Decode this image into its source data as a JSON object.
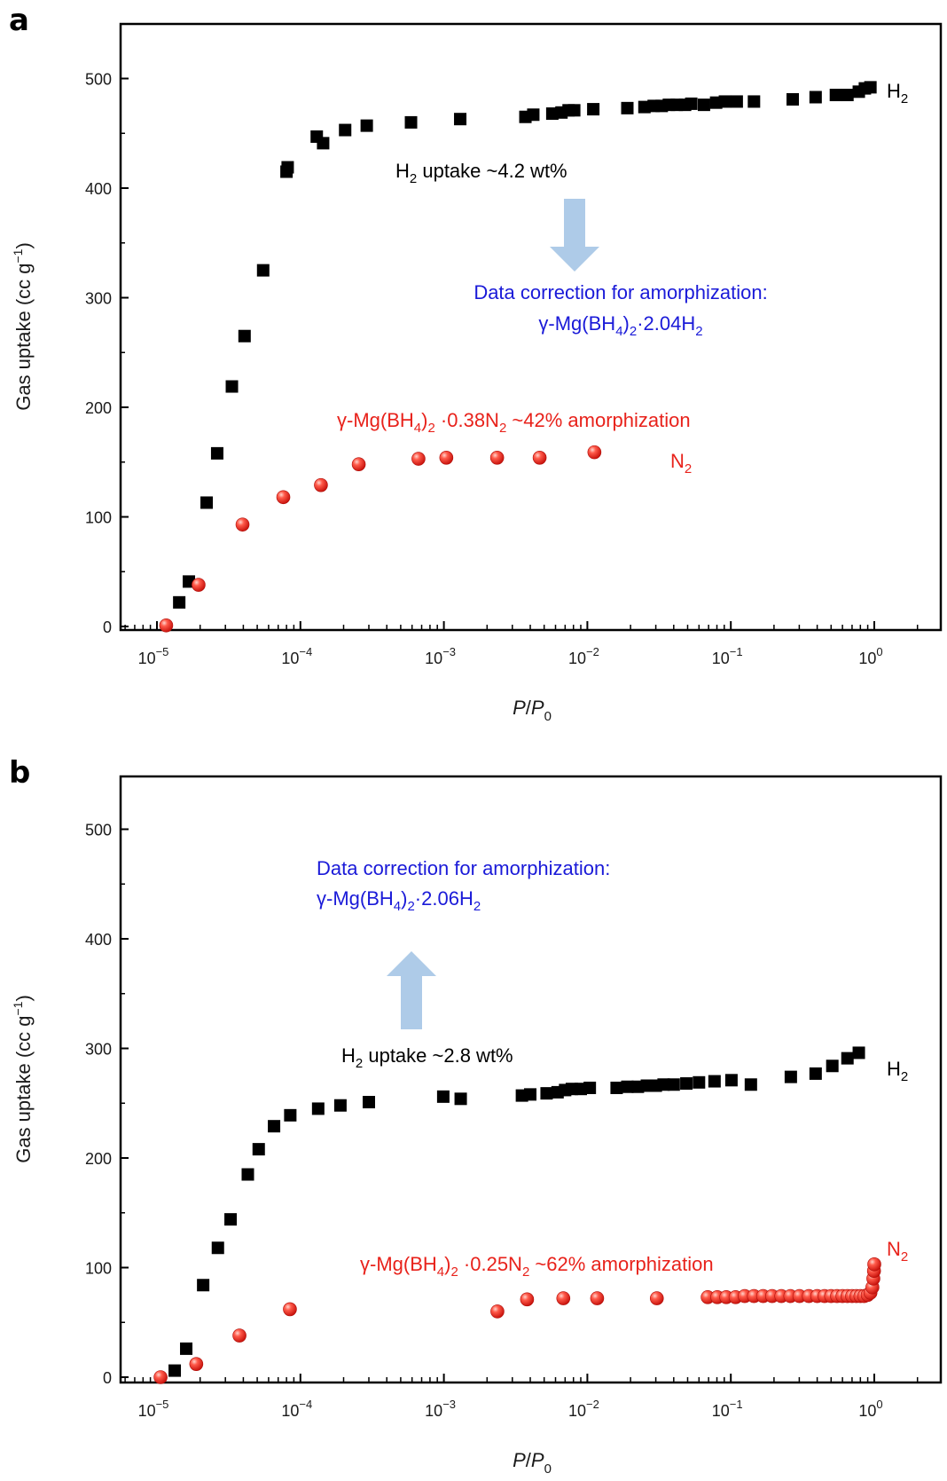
{
  "colors": {
    "h2": "#000000",
    "n2": "#e8221b",
    "note": "#1a1ad8",
    "arrow": "#aecbe8",
    "axis": "#000000"
  },
  "chart_data": [
    {
      "type": "scatter",
      "panel": "a",
      "xscale": "log",
      "xlim": [
        4e-06,
        3
      ],
      "ylim": [
        0,
        550
      ],
      "xlabel": "P/P0",
      "ylabel": "Gas uptake (cc g−1)",
      "yticks": [
        0,
        100,
        200,
        300,
        400,
        500
      ],
      "xticks": [
        {
          "base": "10",
          "exp": "−5"
        },
        {
          "base": "10",
          "exp": "−4"
        },
        {
          "base": "10",
          "exp": "−3"
        },
        {
          "base": "10",
          "exp": "−2"
        },
        {
          "base": "10",
          "exp": "−1"
        },
        {
          "base": "10",
          "exp": "0"
        }
      ],
      "series": [
        {
          "name": "H2",
          "marker": "square",
          "label": {
            "base": "H",
            "sub": "2"
          },
          "x": [
            1.43e-05,
            1.67e-05,
            2.22e-05,
            2.63e-05,
            3.33e-05,
            4.08e-05,
            5.5e-05,
            8e-05,
            8.15e-05,
            0.00013,
            0.000144,
            0.000205,
            0.00029,
            0.00059,
            0.0013,
            0.0037,
            0.0042,
            0.0057,
            0.0066,
            0.0074,
            0.0081,
            0.011,
            0.019,
            0.025,
            0.029,
            0.033,
            0.037,
            0.042,
            0.048,
            0.053,
            0.065,
            0.079,
            0.091,
            0.11,
            0.145,
            0.27,
            0.39,
            0.54,
            0.65,
            0.78,
            0.86,
            0.94
          ],
          "y": [
            22,
            41,
            113,
            158,
            219,
            265,
            325,
            415,
            419,
            447,
            441,
            453,
            457,
            460,
            463,
            465,
            467,
            468,
            469,
            471,
            471,
            472,
            473,
            474,
            475,
            475,
            476,
            476,
            476,
            477,
            476,
            478,
            479,
            479,
            479,
            481,
            483,
            485,
            485,
            488,
            491,
            492
          ]
        },
        {
          "name": "N2",
          "marker": "sphere",
          "label": {
            "base": "N",
            "sub": "2"
          },
          "x": [
            1.16e-05,
            1.95e-05,
            3.95e-05,
            7.6e-05,
            0.000139,
            0.000255,
            0.000665,
            0.00104,
            0.00235,
            0.00465,
            0.0112
          ],
          "y": [
            1,
            38,
            93,
            118,
            129,
            148,
            153,
            154,
            154,
            154,
            159
          ]
        }
      ],
      "annotations": {
        "uptake": {
          "base": "H",
          "sub": "2",
          "rest": " uptake ~4.2 wt%"
        },
        "correction_line1": "Data correction for amorphization:",
        "correction_line2": {
          "a": "γ-Mg(BH",
          "s1": "4",
          "b": ")",
          "s2": "2",
          "c": "·2.04H",
          "s3": "2"
        },
        "n2_note": {
          "a": "γ-Mg(BH",
          "s1": "4",
          "b": ")",
          "s2": "2",
          "c": " ·0.38N",
          "s3": "2",
          "d": " ~42% amorphization"
        }
      }
    },
    {
      "type": "scatter",
      "panel": "b",
      "xscale": "log",
      "xlim": [
        4e-06,
        3
      ],
      "ylim": [
        0,
        550
      ],
      "xlabel": "P/P0",
      "ylabel": "Gas uptake (cc g−1)",
      "yticks": [
        0,
        100,
        200,
        300,
        400,
        500
      ],
      "xticks": [
        {
          "base": "10",
          "exp": "−5"
        },
        {
          "base": "10",
          "exp": "−4"
        },
        {
          "base": "10",
          "exp": "−3"
        },
        {
          "base": "10",
          "exp": "−2"
        },
        {
          "base": "10",
          "exp": "−1"
        },
        {
          "base": "10",
          "exp": "0"
        }
      ],
      "series": [
        {
          "name": "H2",
          "marker": "square",
          "label": {
            "base": "H",
            "sub": "2"
          },
          "x": [
            1.33e-05,
            1.6e-05,
            2.1e-05,
            2.66e-05,
            3.26e-05,
            4.3e-05,
            5.12e-05,
            6.55e-05,
            8.5e-05,
            0.000133,
            0.00019,
            0.0003,
            0.00099,
            0.00131,
            0.0035,
            0.004,
            0.0052,
            0.0062,
            0.007,
            0.0078,
            0.009,
            0.0104,
            0.016,
            0.019,
            0.0225,
            0.026,
            0.03,
            0.034,
            0.04,
            0.049,
            0.06,
            0.077,
            0.101,
            0.138,
            0.262,
            0.39,
            0.51,
            0.65,
            0.78
          ],
          "y": [
            6,
            26,
            84,
            118,
            144,
            185,
            208,
            229,
            239,
            245,
            248,
            251,
            256,
            254,
            257,
            258,
            259,
            260,
            262,
            263,
            263,
            264,
            264,
            265,
            265,
            266,
            266,
            267,
            267,
            268,
            269,
            270,
            271,
            267,
            274,
            277,
            284,
            291,
            296
          ]
        },
        {
          "name": "N2",
          "marker": "sphere",
          "label": {
            "base": "N",
            "sub": "2"
          },
          "x": [
            1.06e-05,
            1.88e-05,
            3.76e-05,
            8.45e-05,
            0.00236,
            0.0038,
            0.0068,
            0.0117,
            0.0305,
            0.069,
            0.0805,
            0.093,
            0.108,
            0.125,
            0.145,
            0.168,
            0.194,
            0.225,
            0.26,
            0.301,
            0.35,
            0.4,
            0.45,
            0.5,
            0.55,
            0.6,
            0.65,
            0.7,
            0.75,
            0.8,
            0.85,
            0.9,
            0.94,
            0.97,
            0.985,
            0.995,
            1.0
          ],
          "y": [
            0,
            12,
            38,
            62,
            60,
            71,
            72,
            72,
            72,
            73,
            73,
            73,
            73,
            74,
            74,
            74,
            74,
            74,
            74,
            74,
            74,
            74,
            74,
            74,
            74,
            74,
            74,
            74,
            74,
            74,
            74,
            75,
            77,
            82,
            90,
            97,
            103
          ]
        }
      ],
      "annotations": {
        "uptake": {
          "base": "H",
          "sub": "2",
          "rest": " uptake ~2.8 wt%"
        },
        "correction_line1": "Data correction for amorphization:",
        "correction_line2": {
          "a": "γ-Mg(BH",
          "s1": "4",
          "b": ")",
          "s2": "2",
          "c": "·2.06H",
          "s3": "2"
        },
        "n2_note": {
          "a": "γ-Mg(BH",
          "s1": "4",
          "b": ")",
          "s2": "2",
          "c": " ·0.25N",
          "s3": "2",
          "d": " ~62% amorphization"
        }
      }
    }
  ],
  "xlabel_parts": {
    "p": "P",
    "slash": "/",
    "p0": "P",
    "sub": "0"
  },
  "ylabel_parts": {
    "main": "Gas uptake (cc g",
    "sup": "−1",
    "close": ")"
  }
}
